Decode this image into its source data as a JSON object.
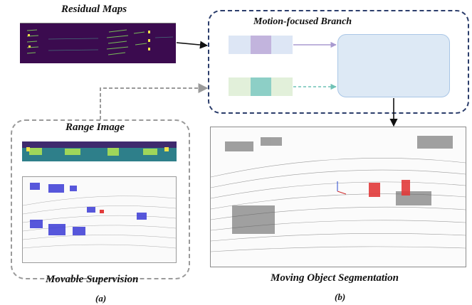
{
  "labels": {
    "residual_maps": "Residual Maps",
    "motion_branch": "Motion-focused Branch",
    "range_image": "Range Image",
    "movable_supervision": "Movable Supervision",
    "moving_object_segmentation": "Moving Object Segmentation",
    "caption_a": "(a)",
    "caption_b": "(b)"
  },
  "colors": {
    "branch_border": "#2b3d6b",
    "range_border": "#9a9a9a",
    "residual_bg": "#3b0b4f",
    "fusion_block": "#dde9f5",
    "feature_purple": "#c2b4dd",
    "feature_teal": "#8dcfc6",
    "movable_points": "#3b3bd6",
    "moving_points": "#e23b3b"
  }
}
